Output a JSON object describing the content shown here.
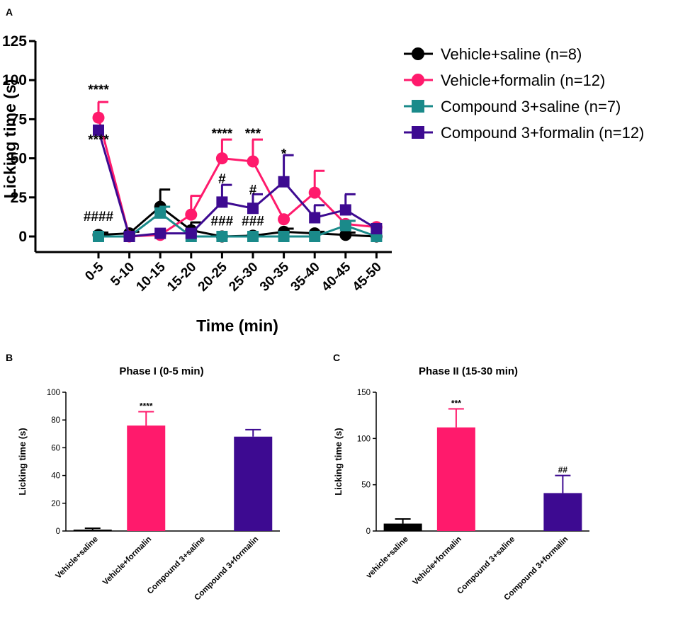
{
  "chart_data": [
    {
      "panel": "A",
      "type": "line",
      "xlabel": "Time (min)",
      "ylabel": "Licking time (s)",
      "ylim": [
        0,
        125
      ],
      "yticks": [
        "0",
        "25",
        "50",
        "75",
        "100",
        "125"
      ],
      "categories": [
        "0-5",
        "5-10",
        "10-15",
        "15-20",
        "20-25",
        "25-30",
        "30-35",
        "35-40",
        "40-45",
        "45-50"
      ],
      "series": [
        {
          "name": "Vehicle+saline (n=8)",
          "color": "#000000",
          "marker": "circle",
          "values": [
            1,
            2,
            19,
            4,
            0,
            0.5,
            3,
            2,
            1,
            0
          ],
          "errors": [
            1.5,
            1,
            11,
            5,
            0,
            0.5,
            2,
            1,
            1.5,
            0
          ]
        },
        {
          "name": "Vehicle+formalin (n=12)",
          "color": "#ff1a6c",
          "marker": "circle",
          "values": [
            76,
            0,
            1,
            14,
            50,
            48,
            11,
            28,
            8,
            6
          ],
          "errors": [
            10,
            0,
            0,
            12,
            12,
            14,
            0,
            14,
            2,
            0
          ]
        },
        {
          "name": "Compound 3+saline (n=7)",
          "color": "#1a8a8a",
          "marker": "square",
          "values": [
            0,
            0,
            15,
            0,
            0,
            0,
            0,
            0,
            7,
            0
          ],
          "errors": [
            0,
            0,
            4,
            0,
            0,
            0,
            0,
            0,
            3,
            0
          ]
        },
        {
          "name": "Compound 3+formalin (n=12)",
          "color": "#3d0a91",
          "marker": "square",
          "values": [
            68,
            0,
            2,
            2,
            22,
            18,
            35,
            12,
            17,
            5
          ],
          "errors": [
            0,
            0,
            0,
            0,
            11,
            9,
            17,
            8,
            10,
            0
          ]
        }
      ],
      "annotations": [
        {
          "text": "****",
          "category": "0-5",
          "value": 91
        },
        {
          "text": "****",
          "category": "0-5",
          "value": 59
        },
        {
          "text": "####",
          "category": "0-5",
          "value": 10
        },
        {
          "text": "****",
          "category": "20-25",
          "value": 63
        },
        {
          "text": "***",
          "category": "25-30",
          "value": 63
        },
        {
          "text": "#",
          "category": "20-25",
          "value": 34
        },
        {
          "text": "#",
          "category": "25-30",
          "value": 27
        },
        {
          "text": "###",
          "category": "20-25",
          "value": 7
        },
        {
          "text": "###",
          "category": "25-30",
          "value": 7
        },
        {
          "text": "*",
          "category": "30-35",
          "value": 50
        }
      ]
    },
    {
      "panel": "B",
      "type": "bar",
      "title": "Phase I (0-5 min)",
      "ylabel": "Licking time (s)",
      "ylim": [
        0,
        100
      ],
      "yticks": [
        "0",
        "20",
        "40",
        "60",
        "80",
        "100"
      ],
      "categories": [
        "Vehicle+saline",
        "Vehicle+formalin",
        "Compound 3+saline",
        "Compound 3+formalin"
      ],
      "values": [
        1,
        76,
        0,
        68
      ],
      "errors": [
        1,
        10,
        0,
        5
      ],
      "colors": [
        "#000000",
        "#ff1a6c",
        "#1a8a8a",
        "#3d0a91"
      ],
      "labels": [
        "",
        "****",
        "",
        ""
      ]
    },
    {
      "panel": "C",
      "type": "bar",
      "title": "Phase II (15-30 min)",
      "ylabel": "Licking time (s)",
      "ylim": [
        0,
        150
      ],
      "yticks": [
        "0",
        "50",
        "100",
        "150"
      ],
      "categories": [
        "vehicle+saline",
        "Vehicle+formalin",
        "Compound 3+saline",
        "Compound 3+formalin"
      ],
      "values": [
        8,
        112,
        0,
        41
      ],
      "errors": [
        5,
        20,
        0,
        19
      ],
      "colors": [
        "#000000",
        "#ff1a6c",
        "#1a8a8a",
        "#3d0a91"
      ],
      "labels": [
        "",
        "***",
        "",
        "##"
      ]
    }
  ]
}
